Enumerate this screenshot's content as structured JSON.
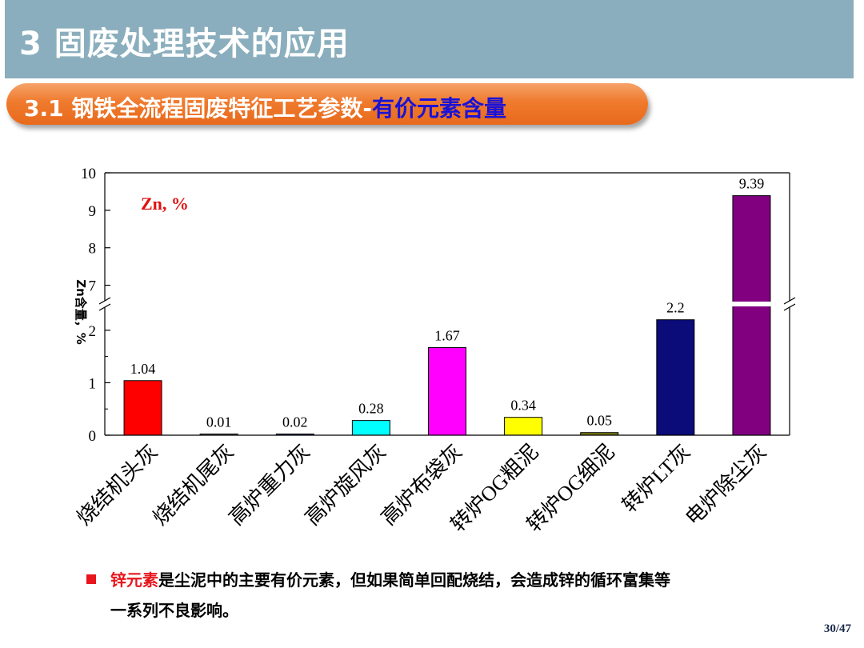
{
  "header": {
    "title": "3 固废处理技术的应用"
  },
  "subheader": {
    "title_main": "3.1 钢铁全流程固废特征工艺参数-",
    "title_accent": "有价元素含量"
  },
  "chart_data": {
    "type": "bar",
    "annotation": "Zn, %",
    "ylabel": "Zn含量，%",
    "y_axis_break": {
      "lower": [
        0,
        2.5
      ],
      "upper": [
        6.5,
        10
      ]
    },
    "y_ticks": [
      0,
      1,
      2,
      7,
      8,
      9,
      10
    ],
    "categories": [
      "烧结机头灰",
      "烧结机尾灰",
      "高炉重力灰",
      "高炉旋风灰",
      "高炉布袋灰",
      "转炉OG粗泥",
      "转炉OG细泥",
      "转炉LT灰",
      "电炉除尘灰"
    ],
    "values": [
      1.04,
      0.01,
      0.02,
      0.28,
      1.67,
      0.34,
      0.05,
      2.2,
      9.39
    ],
    "value_labels": [
      "1.04",
      "0.01",
      "0.02",
      "0.28",
      "1.67",
      "0.34",
      "0.05",
      "2.2",
      "9.39"
    ],
    "colors": [
      "#ff0000",
      "#8a8a8a",
      "#3b5b9a",
      "#00ffff",
      "#ff00ff",
      "#ffff00",
      "#7a7a10",
      "#0b0b7a",
      "#800080"
    ],
    "legend": "none",
    "grid": false
  },
  "note": {
    "highlight": "锌元素",
    "line1_rest": "是尘泥中的主要有价元素，但如果简单回配烧结，会造成锌的循环富集等",
    "line2": "一系列不良影响。"
  },
  "page_number": "30/47"
}
